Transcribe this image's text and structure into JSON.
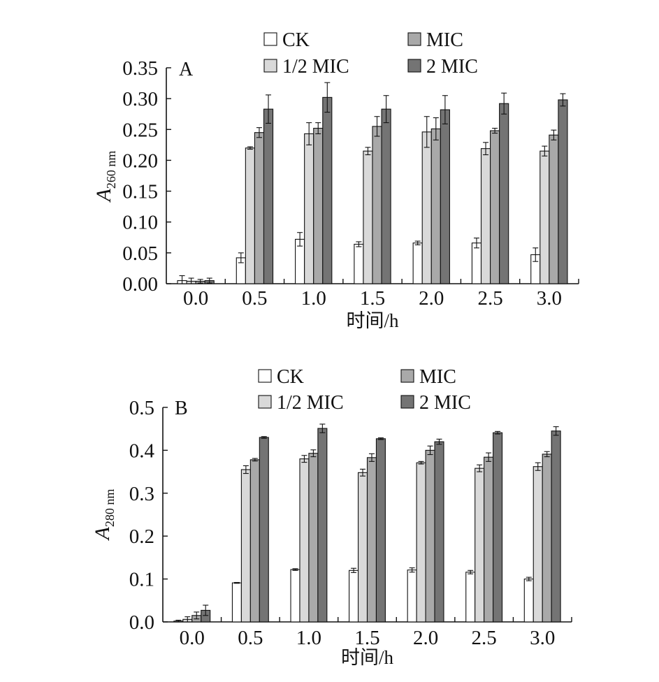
{
  "chart_data": [
    {
      "type": "bar",
      "panel_label": "A",
      "ylabel_main": "A",
      "ylabel_sub": "260 nm",
      "xlabel": "时间/h",
      "ylim": [
        0,
        0.35
      ],
      "yticks": [
        "0.00",
        "0.05",
        "0.10",
        "0.15",
        "0.20",
        "0.25",
        "0.30",
        "0.35"
      ],
      "categories": [
        "0.0",
        "0.5",
        "1.0",
        "1.5",
        "2.0",
        "2.5",
        "3.0"
      ],
      "legend_position": "top",
      "series": [
        {
          "name": "CK",
          "color": "#ffffff",
          "values": [
            0.005,
            0.042,
            0.072,
            0.064,
            0.066,
            0.066,
            0.047
          ],
          "errors": [
            0.008,
            0.008,
            0.011,
            0.004,
            0.003,
            0.008,
            0.011
          ]
        },
        {
          "name": "1/2 MIC",
          "color": "#d9d9d9",
          "values": [
            0.004,
            0.22,
            0.243,
            0.215,
            0.246,
            0.219,
            0.215
          ],
          "errors": [
            0.005,
            0.002,
            0.018,
            0.006,
            0.025,
            0.01,
            0.008
          ]
        },
        {
          "name": "MIC",
          "color": "#a9a9a9",
          "values": [
            0.004,
            0.245,
            0.252,
            0.255,
            0.251,
            0.248,
            0.241
          ],
          "errors": [
            0.003,
            0.008,
            0.009,
            0.016,
            0.018,
            0.004,
            0.008
          ]
        },
        {
          "name": "2 MIC",
          "color": "#747474",
          "values": [
            0.005,
            0.283,
            0.302,
            0.283,
            0.282,
            0.292,
            0.298
          ],
          "errors": [
            0.004,
            0.023,
            0.024,
            0.022,
            0.023,
            0.017,
            0.01
          ]
        }
      ]
    },
    {
      "type": "bar",
      "panel_label": "B",
      "ylabel_main": "A",
      "ylabel_sub": "280 nm",
      "xlabel": "时间/h",
      "ylim": [
        0,
        0.5
      ],
      "yticks": [
        "0.0",
        "0.1",
        "0.2",
        "0.3",
        "0.4",
        "0.5"
      ],
      "categories": [
        "0.0",
        "0.5",
        "1.0",
        "1.5",
        "2.0",
        "2.5",
        "3.0"
      ],
      "legend_position": "top",
      "series": [
        {
          "name": "CK",
          "color": "#ffffff",
          "values": [
            0.002,
            0.091,
            0.122,
            0.12,
            0.121,
            0.116,
            0.1
          ],
          "errors": [
            0.002,
            0.001,
            0.002,
            0.005,
            0.005,
            0.004,
            0.004
          ]
        },
        {
          "name": "1/2 MIC",
          "color": "#d9d9d9",
          "values": [
            0.006,
            0.355,
            0.38,
            0.348,
            0.371,
            0.358,
            0.362
          ],
          "errors": [
            0.006,
            0.009,
            0.008,
            0.008,
            0.003,
            0.008,
            0.009
          ]
        },
        {
          "name": "MIC",
          "color": "#a9a9a9",
          "values": [
            0.015,
            0.378,
            0.393,
            0.383,
            0.4,
            0.384,
            0.391
          ],
          "errors": [
            0.008,
            0.003,
            0.008,
            0.009,
            0.01,
            0.01,
            0.006
          ]
        },
        {
          "name": "2 MIC",
          "color": "#747474",
          "values": [
            0.027,
            0.43,
            0.451,
            0.427,
            0.42,
            0.441,
            0.445
          ],
          "errors": [
            0.012,
            0.002,
            0.01,
            0.002,
            0.006,
            0.003,
            0.01
          ]
        }
      ]
    }
  ]
}
